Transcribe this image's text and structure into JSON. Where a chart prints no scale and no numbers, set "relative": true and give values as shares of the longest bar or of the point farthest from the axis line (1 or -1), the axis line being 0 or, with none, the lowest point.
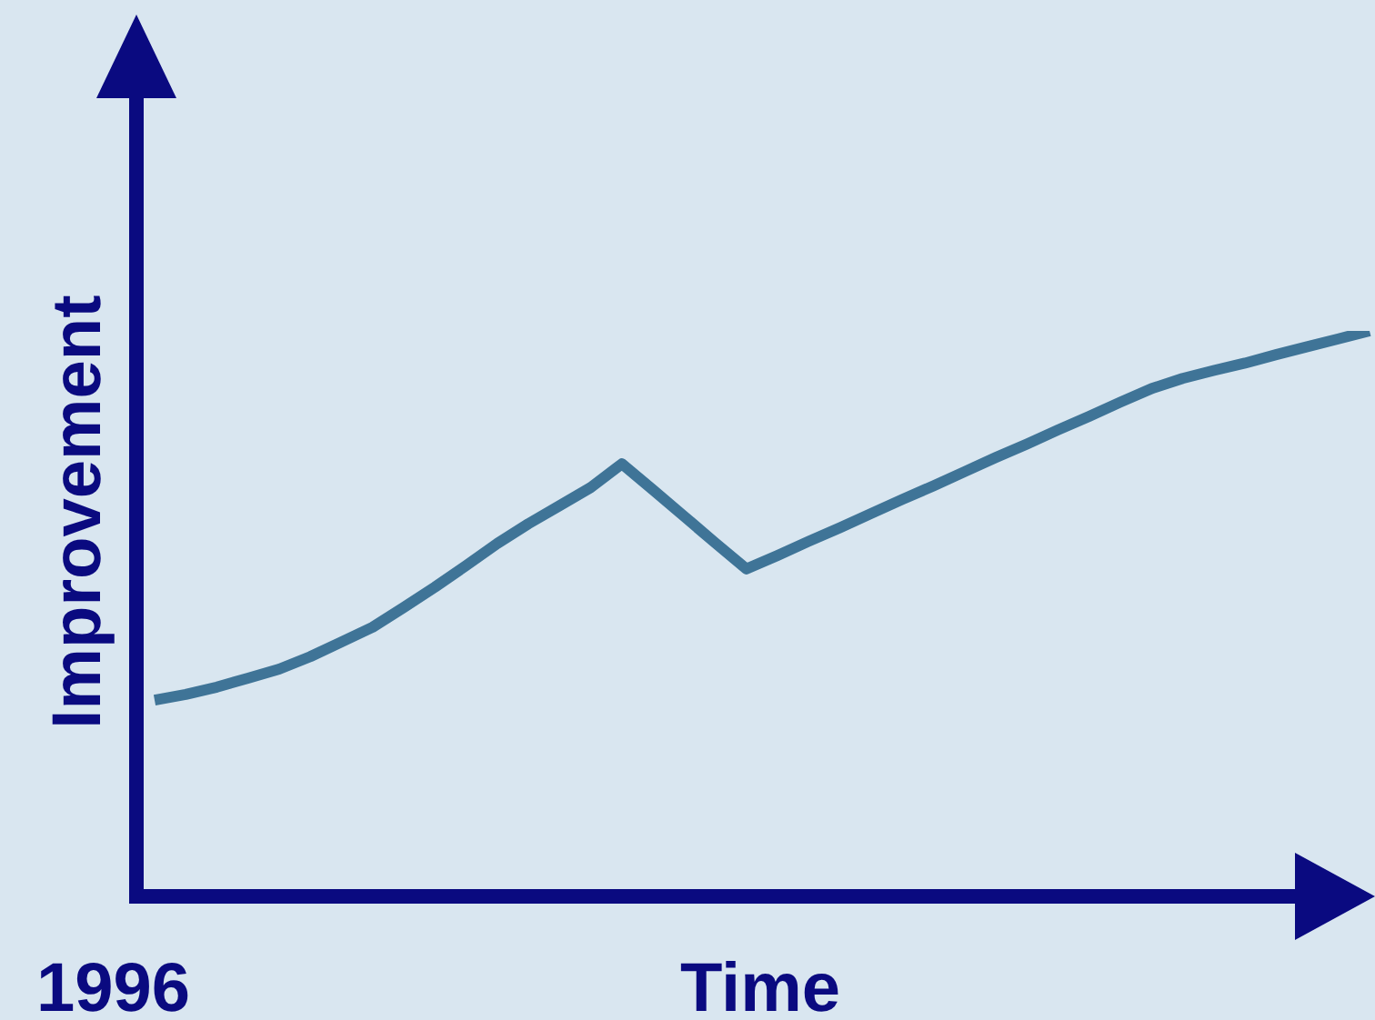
{
  "chart_data": {
    "type": "line",
    "relative": true,
    "xlabel": "Time",
    "ylabel": "Improvement",
    "marker": "none",
    "annotations": [
      "1996"
    ],
    "categories": [
      null,
      null,
      null,
      null,
      null,
      null,
      null,
      null,
      null,
      null,
      null,
      null,
      null,
      null,
      null,
      null,
      null,
      null,
      null,
      null,
      null,
      null,
      null,
      null,
      null,
      null,
      null,
      null,
      null,
      null,
      null,
      null,
      null,
      null,
      null,
      null,
      null,
      null,
      null,
      null
    ],
    "series": [
      {
        "color": "#3f7497",
        "values": [
          0.347,
          0.357,
          0.37,
          0.386,
          0.402,
          0.424,
          0.45,
          0.476,
          0.511,
          0.547,
          0.585,
          0.624,
          0.659,
          0.691,
          0.723,
          0.765,
          0.719,
          0.672,
          0.625,
          0.579,
          0.603,
          0.628,
          0.652,
          0.677,
          0.702,
          0.726,
          0.751,
          0.776,
          0.8,
          0.825,
          0.849,
          0.874,
          0.898,
          0.916,
          0.93,
          0.943,
          0.958,
          0.972,
          0.986,
          1
        ]
      }
    ]
  }
}
